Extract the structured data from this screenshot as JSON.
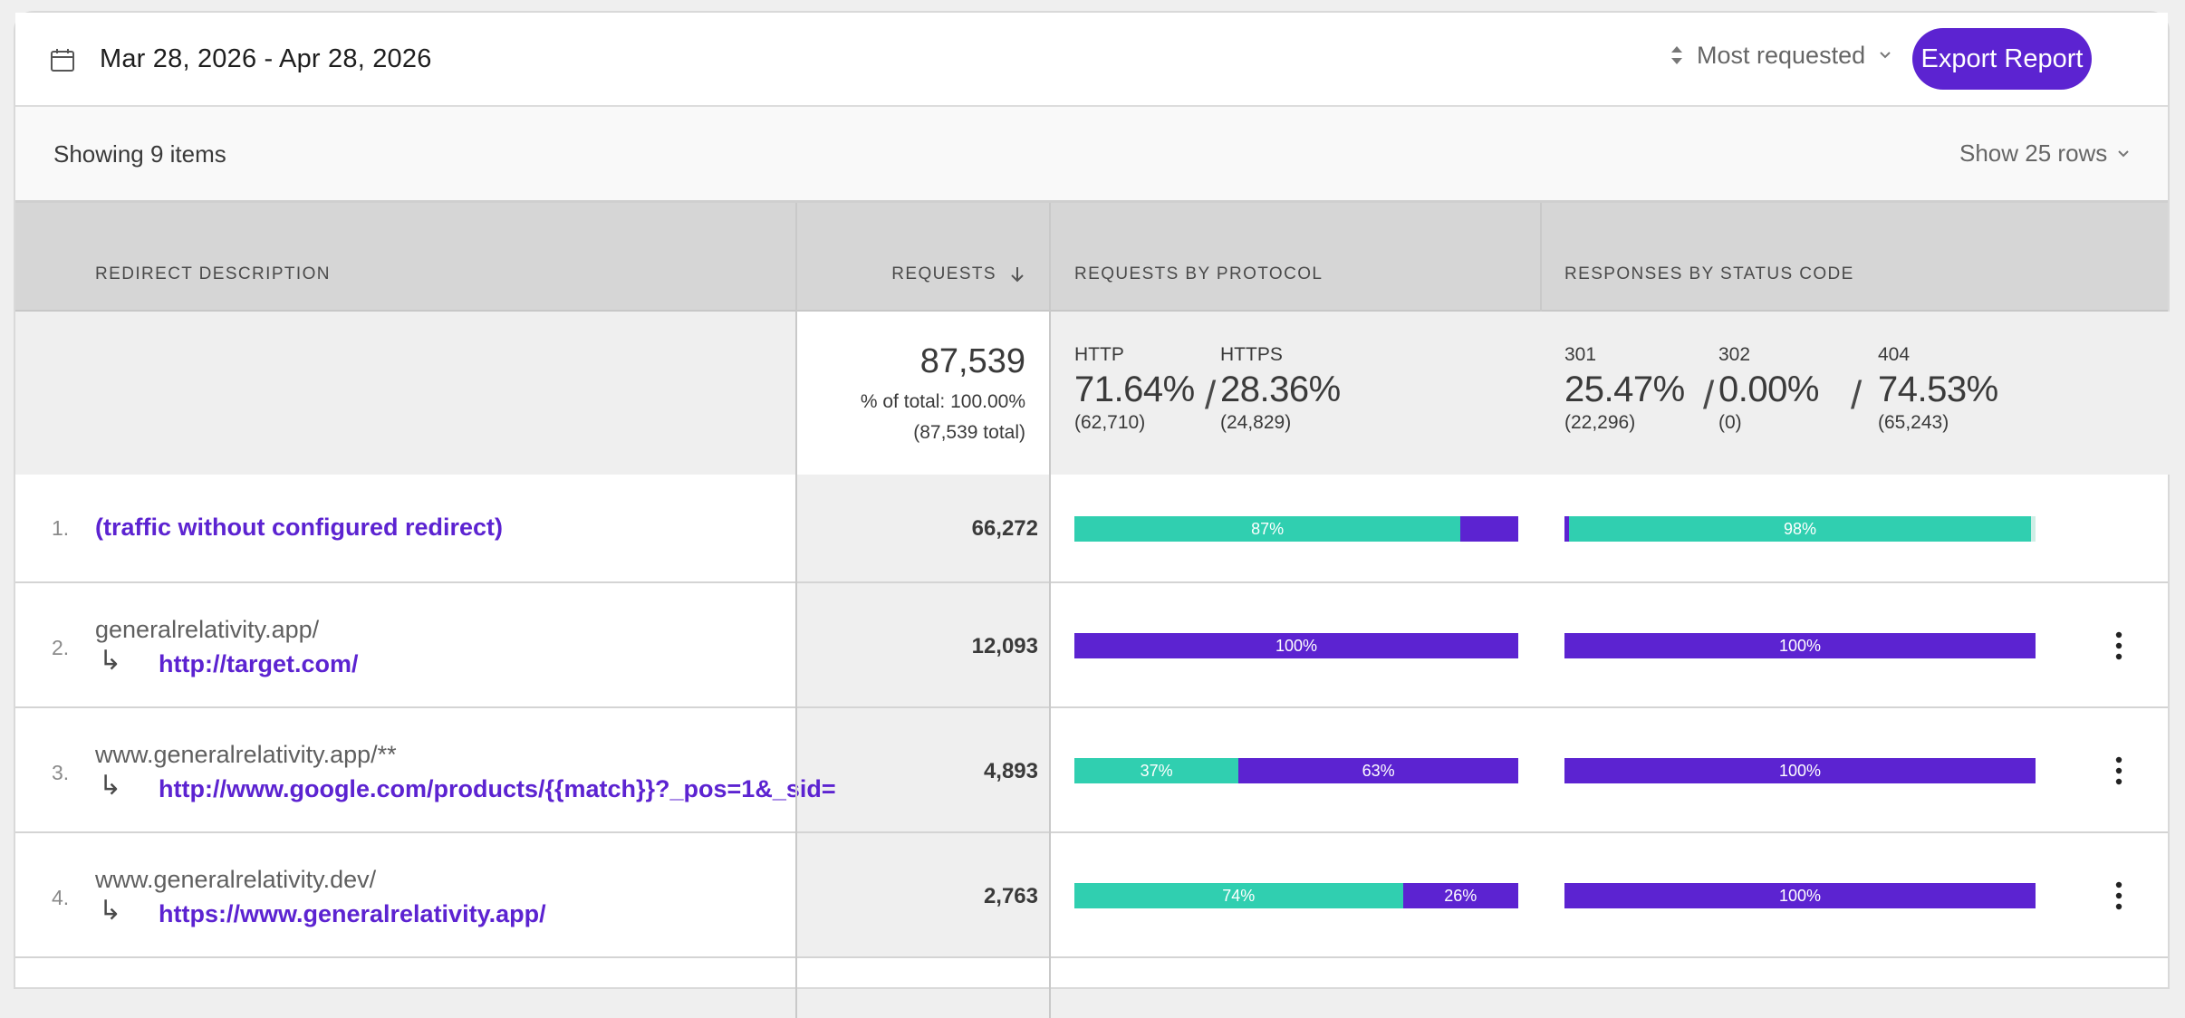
{
  "header": {
    "date_range": "Mar 28, 2026 - Apr 28, 2026",
    "sort_label": "Most requested",
    "export_label": "Export Report",
    "accent": "#5c23d1",
    "teal": "#30cfb0"
  },
  "subheader": {
    "showing": "Showing 9 items",
    "rows_label": "Show 25 rows"
  },
  "columns": {
    "description": "REDIRECT DESCRIPTION",
    "requests": "REQUESTS",
    "protocol": "REQUESTS BY PROTOCOL",
    "status": "RESPONSES BY STATUS CODE"
  },
  "summary": {
    "total": "87,539",
    "pct_total": "% of total: 100.00%",
    "abs_total": "(87,539 total)",
    "http_label": "HTTP",
    "http_pct": "71.64%",
    "http_count": "(62,710)",
    "https_label": "HTTPS",
    "https_pct": "28.36%",
    "https_count": "(24,829)",
    "s301_label": "301",
    "s301_pct": "25.47%",
    "s301_count": "(22,296)",
    "s302_label": "302",
    "s302_pct": "0.00%",
    "s302_count": "(0)",
    "s404_label": "404",
    "s404_pct": "74.53%",
    "s404_count": "(65,243)",
    "sep": "/"
  },
  "rows": [
    {
      "index": "1.",
      "link": "(traffic without configured redirect)",
      "requests": "66,272",
      "protocol": {
        "http_frac": 0.87,
        "http_label": "87%",
        "https_label": ""
      },
      "status": {
        "label_301": "98%"
      }
    },
    {
      "index": "2.",
      "source": "generalrelativity.app/",
      "arrow": "↳",
      "dest": "http://target.com/",
      "requests": "12,093",
      "protocol": {
        "http_frac": 0,
        "http_label": "",
        "https_label": "100%"
      },
      "status": {
        "label_301": "100%"
      }
    },
    {
      "index": "3.",
      "source": "www.generalrelativity.app/**",
      "arrow": "↳",
      "dest": "http://www.google.com/products/{{match}}?_pos=1&_sid=",
      "requests": "4,893",
      "protocol": {
        "http_frac": 0.37,
        "http_label": "37%",
        "https_label": "63%"
      },
      "status": {
        "label_301": "100%"
      }
    },
    {
      "index": "4.",
      "source": "www.generalrelativity.dev/",
      "arrow": "↳",
      "dest": "https://www.generalrelativity.app/",
      "requests": "2,763",
      "protocol": {
        "http_frac": 0.74,
        "http_label": "74%",
        "https_label": "26%"
      },
      "status": {
        "label_301": "100%"
      }
    }
  ]
}
